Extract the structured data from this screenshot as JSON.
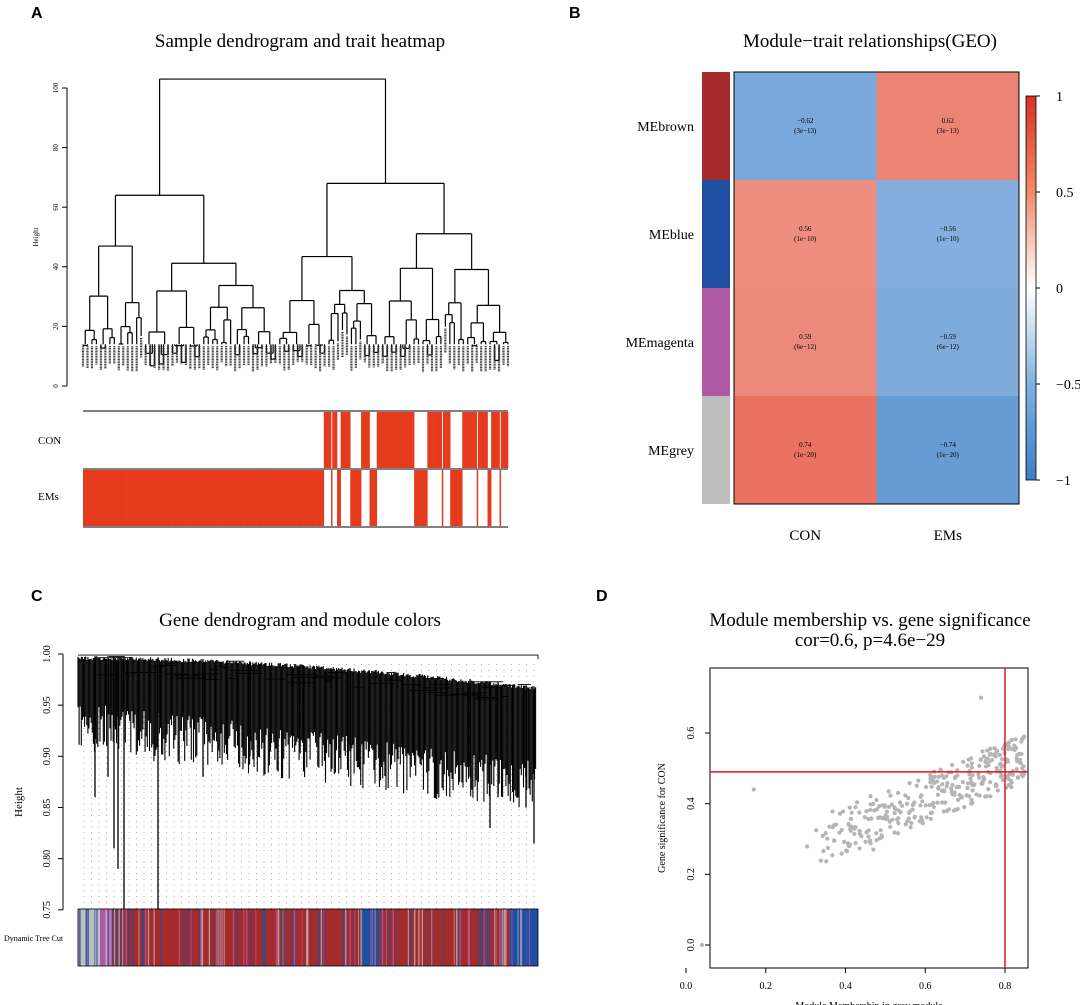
{
  "panels": [
    {
      "letter": "A"
    },
    {
      "letter": "B"
    },
    {
      "letter": "C"
    },
    {
      "letter": "D"
    }
  ],
  "colors": {
    "red": "#e53b1c",
    "heat_pos": "#e34a33",
    "heat_neg": "#3b7ec8",
    "brown": "#a52a2a",
    "blue": "#1f4fa3",
    "magenta": "#b05aa6",
    "grey": "#bebebe",
    "point": "#b5b5b5",
    "refline": "#e01818"
  },
  "chart_data": [
    {
      "id": "A",
      "type": "dendrogram",
      "title": "Sample dendrogram and trait heatmap",
      "ylabel": "Height",
      "ylim": [
        0,
        100
      ],
      "yticks": [
        0,
        20,
        40,
        60,
        80,
        100
      ],
      "traits": [
        "CON",
        "EMs"
      ],
      "con_pattern": [
        0,
        0,
        0,
        0,
        0,
        0,
        0,
        0,
        0,
        0,
        0,
        0,
        0,
        0,
        0,
        0,
        0,
        0,
        0,
        0,
        0,
        0,
        0,
        0,
        0,
        0,
        0,
        0,
        0,
        0,
        0,
        0,
        0,
        0,
        0,
        0,
        0,
        0,
        0,
        0,
        0,
        0,
        0,
        0,
        0,
        0,
        0,
        0,
        0,
        0,
        0,
        0,
        0,
        0,
        0,
        0,
        0,
        0,
        0,
        0,
        0,
        0,
        0,
        0,
        0,
        0,
        0,
        0,
        0,
        0,
        0,
        0,
        0,
        0,
        0,
        0,
        0,
        0,
        0,
        0,
        0,
        0,
        0,
        0,
        0,
        0,
        0,
        0,
        0,
        0,
        0,
        0,
        0,
        0,
        0,
        0,
        0,
        0,
        0,
        0,
        0,
        0,
        0,
        0,
        0,
        0,
        0,
        0,
        0,
        0,
        0,
        0,
        0,
        0,
        0,
        0,
        0,
        0,
        0,
        0,
        0,
        0,
        0,
        0,
        0,
        0,
        0,
        0,
        0,
        0,
        0,
        0,
        0,
        0,
        0,
        0,
        0,
        0,
        0,
        0,
        0,
        0,
        0,
        0,
        0,
        0,
        0,
        0,
        0,
        0,
        0,
        0,
        0,
        0,
        0,
        0,
        0,
        0,
        0,
        0,
        0,
        0,
        0,
        0,
        0,
        0,
        0,
        0,
        0,
        0,
        0,
        0,
        0,
        0,
        0,
        0,
        0,
        0,
        0,
        0,
        0,
        0,
        0,
        0,
        0,
        0,
        0,
        0,
        0,
        0,
        0,
        0,
        0,
        0,
        0,
        0,
        0,
        0,
        0,
        0,
        1,
        1,
        1,
        1,
        1,
        1,
        0,
        1,
        1,
        1,
        1,
        0,
        0,
        0,
        1,
        1,
        1,
        1,
        1,
        1,
        1,
        1,
        0,
        0,
        0,
        0,
        0,
        0,
        0,
        0,
        0,
        1,
        1,
        1,
        1,
        1,
        1,
        1,
        0,
        0,
        0,
        0,
        0,
        0,
        1,
        1,
        1,
        1,
        1,
        1,
        1,
        1,
        1,
        1,
        1,
        1,
        1,
        1,
        1,
        1,
        1,
        1,
        1,
        1,
        1,
        1,
        1,
        1,
        1,
        1,
        1,
        1,
        1,
        1,
        1,
        0,
        0,
        0,
        0,
        0,
        0,
        0,
        0,
        0,
        0,
        0,
        1,
        1,
        1,
        1,
        1,
        1,
        1,
        1,
        1,
        1,
        1,
        1,
        0,
        1,
        1,
        1,
        1,
        1,
        1,
        0,
        0,
        0,
        0,
        0,
        0,
        0,
        0,
        0,
        0,
        1,
        1,
        1,
        1,
        1,
        1,
        1,
        1,
        1,
        1,
        1,
        1,
        0,
        1,
        1,
        1,
        1,
        1,
        1,
        1,
        1,
        0,
        0,
        0,
        1,
        1,
        1,
        1,
        1,
        1,
        1,
        0,
        1,
        1,
        1,
        1,
        1,
        1
      ]
    },
    {
      "id": "B",
      "type": "heatmap",
      "title": "Module−trait relationships(GEO)",
      "rows": [
        "MEbrown",
        "MEblue",
        "MEmagenta",
        "MEgrey"
      ],
      "row_colors": [
        "#a52a2a",
        "#1f4fa3",
        "#b05aa6",
        "#bebebe"
      ],
      "columns": [
        "CON",
        "EMs"
      ],
      "values": [
        [
          -0.62,
          0.62
        ],
        [
          0.56,
          -0.56
        ],
        [
          0.59,
          -0.59
        ],
        [
          0.74,
          -0.74
        ]
      ],
      "pvalues": [
        [
          "(3e−13)",
          "(3e−13)"
        ],
        [
          "(1e−10)",
          "(1e−10)"
        ],
        [
          "(6e−12)",
          "(6e−12)"
        ],
        [
          "(1e−20)",
          "(1e−20)"
        ]
      ],
      "labels": [
        [
          "−0.62",
          "0.62"
        ],
        [
          "0.56",
          "−0.56"
        ],
        [
          "0.59",
          "−0.59"
        ],
        [
          "0.74",
          "−0.74"
        ]
      ],
      "colorbar_ticks": [
        "1",
        "0.5",
        "0",
        "−0.5",
        "−1"
      ],
      "colorbar_values": [
        1,
        0.5,
        0,
        -0.5,
        -1
      ]
    },
    {
      "id": "C",
      "type": "dendrogram",
      "title": "Gene dendrogram and module colors",
      "ylabel": "Height",
      "ylim": [
        0.7,
        1.0
      ],
      "yticks": [
        "0.75",
        "0.80",
        "0.85",
        "0.90",
        "0.95",
        "1.00"
      ],
      "ytick_values": [
        0.75,
        0.8,
        0.85,
        0.9,
        0.95,
        1.0
      ],
      "color_row_label": "Dynamic Tree Cut"
    },
    {
      "id": "D",
      "type": "scatter",
      "title": "Module membership vs. gene significance",
      "subtitle": "cor=0.6, p=4.6e−29",
      "xlabel": "Module Membership in grey module",
      "ylabel": "Gene significance for CON",
      "xlim": [
        0.0,
        0.9
      ],
      "ylim": [
        0.0,
        0.7
      ],
      "xticks": [
        "0.0",
        "0.2",
        "0.4",
        "0.6",
        "0.8"
      ],
      "xtick_values": [
        0.0,
        0.2,
        0.4,
        0.6,
        0.8
      ],
      "yticks": [
        "0.0",
        "0.2",
        "0.4",
        "0.6"
      ],
      "ytick_values": [
        0.0,
        0.2,
        0.4,
        0.6
      ],
      "hline": 0.49,
      "vline": 0.8,
      "points_note": "approx. 330 genes, cloud centered near MM 0.6, GS 0.45",
      "outliers": [
        [
          0.04,
          0.0
        ],
        [
          0.17,
          0.44
        ],
        [
          0.47,
          0.27
        ],
        [
          0.74,
          0.7
        ]
      ]
    }
  ]
}
